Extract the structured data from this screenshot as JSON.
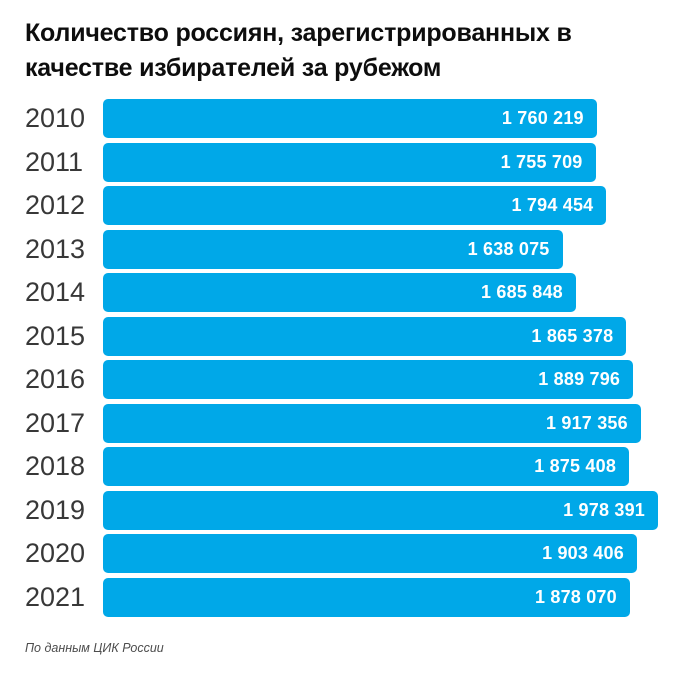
{
  "page": {
    "background": "#ffffff"
  },
  "chart_data": {
    "type": "bar",
    "orientation": "horizontal",
    "title": "Количество россиян, зарегистрированных в качестве избирателей за рубежом",
    "source": "По данным ЦИК России",
    "categories": [
      "2010",
      "2011",
      "2012",
      "2013",
      "2014",
      "2015",
      "2016",
      "2017",
      "2018",
      "2019",
      "2020",
      "2021"
    ],
    "values": [
      1760219,
      1755709,
      1794454,
      1638075,
      1685848,
      1865378,
      1889796,
      1917356,
      1875408,
      1978391,
      1903406,
      1878070
    ],
    "value_labels": [
      "1 760 219",
      "1 755 709",
      "1 794 454",
      "1 638 075",
      "1 685 848",
      "1 865 378",
      "1 889 796",
      "1 917 356",
      "1 875 408",
      "1 978 391",
      "1 903 406",
      "1 878 070"
    ],
    "xlim": [
      0,
      1978391
    ],
    "grid": false,
    "legend": false,
    "bar_color": "#00a8e8",
    "value_label_color": "#ffffff",
    "year_label_color": "#383838",
    "title_color": "#0d0d0d",
    "source_color": "#4d4d4d"
  }
}
